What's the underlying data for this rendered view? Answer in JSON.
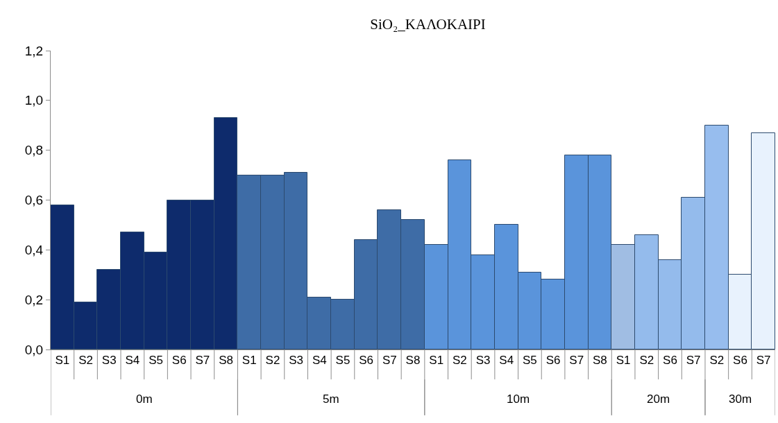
{
  "chart_data": {
    "type": "bar",
    "title": "SiO₂_ΚΑΛΟΚΑΙΡΙ",
    "categories": [
      "S1",
      "S2",
      "S3",
      "S4",
      "S5",
      "S6",
      "S7",
      "S8",
      "S1",
      "S2",
      "S3",
      "S4",
      "S5",
      "S6",
      "S7",
      "S8",
      "S1",
      "S2",
      "S3",
      "S4",
      "S5",
      "S6",
      "S7",
      "S8",
      "S1",
      "S2",
      "S6",
      "S7",
      "S2",
      "S6",
      "S7"
    ],
    "series": [
      {
        "name": "0m",
        "color": "#0e2b6c",
        "values": [
          0.58,
          0.19,
          0.32,
          0.47,
          0.39,
          0.6,
          0.6,
          0.93,
          null,
          null,
          null,
          null,
          null,
          null,
          null,
          null,
          null,
          null,
          null,
          null,
          null,
          null,
          null,
          null,
          null,
          null,
          null,
          null,
          null,
          null,
          null
        ]
      },
      {
        "name": "5m",
        "color": "#3e6ca6",
        "values": [
          null,
          null,
          null,
          null,
          null,
          null,
          null,
          null,
          0.7,
          0.7,
          0.71,
          0.21,
          0.2,
          0.44,
          0.56,
          0.52,
          null,
          null,
          null,
          null,
          null,
          null,
          null,
          null,
          null,
          null,
          null,
          null,
          null,
          null,
          null
        ]
      },
      {
        "name": "10m",
        "color": "#5a94db",
        "values": [
          null,
          null,
          null,
          null,
          null,
          null,
          null,
          null,
          null,
          null,
          null,
          null,
          null,
          null,
          null,
          null,
          0.42,
          0.76,
          0.38,
          0.5,
          0.31,
          0.28,
          0.78,
          0.78,
          null,
          null,
          null,
          null,
          null,
          null,
          null
        ]
      },
      {
        "name": "20m",
        "color": "#94bbec",
        "colors": [
          null,
          null,
          null,
          null,
          null,
          null,
          null,
          null,
          null,
          null,
          null,
          null,
          null,
          null,
          null,
          null,
          null,
          null,
          null,
          null,
          null,
          null,
          null,
          null,
          "#a0bde3",
          "#94bbec",
          "#94bbec",
          "#94bbec",
          null,
          null,
          null
        ],
        "values": [
          null,
          null,
          null,
          null,
          null,
          null,
          null,
          null,
          null,
          null,
          null,
          null,
          null,
          null,
          null,
          null,
          null,
          null,
          null,
          null,
          null,
          null,
          null,
          null,
          0.42,
          0.46,
          0.36,
          0.61,
          null,
          null,
          null
        ]
      },
      {
        "name": "30m",
        "color": "#e8f2fd",
        "colors": [
          null,
          null,
          null,
          null,
          null,
          null,
          null,
          null,
          null,
          null,
          null,
          null,
          null,
          null,
          null,
          null,
          null,
          null,
          null,
          null,
          null,
          null,
          null,
          null,
          null,
          null,
          null,
          null,
          "#97bdee",
          "#e8f2fd",
          "#e8f2fd"
        ],
        "values": [
          null,
          null,
          null,
          null,
          null,
          null,
          null,
          null,
          null,
          null,
          null,
          null,
          null,
          null,
          null,
          null,
          null,
          null,
          null,
          null,
          null,
          null,
          null,
          null,
          null,
          null,
          null,
          null,
          0.9,
          0.3,
          0.87
        ]
      }
    ],
    "ylim": [
      0,
      1.2
    ],
    "yticks": [
      {
        "value": 0,
        "label": "0,0"
      },
      {
        "value": 0.2,
        "label": "0,2"
      },
      {
        "value": 0.4,
        "label": "0,4"
      },
      {
        "value": 0.6,
        "label": "0,6"
      },
      {
        "value": 0.8,
        "label": "0,8"
      },
      {
        "value": 1.0,
        "label": "1,0"
      },
      {
        "value": 1.2,
        "label": "1,2"
      }
    ],
    "grid": false,
    "legend": false
  }
}
